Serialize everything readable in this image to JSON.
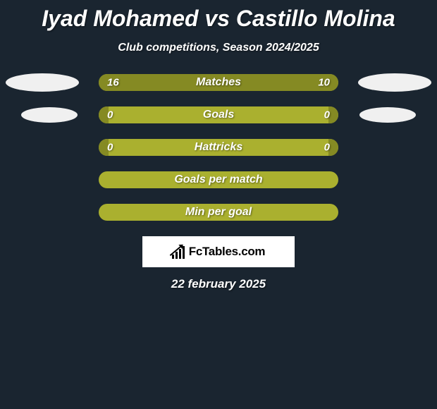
{
  "title": "Iyad Mohamed vs Castillo Molina",
  "subtitle": "Club competitions, Season 2024/2025",
  "date": "22 february 2025",
  "brand": "FcTables.com",
  "colors": {
    "background": "#1a2530",
    "bar_base": "#aab02f",
    "bar_dark": "#858a23",
    "text": "#ffffff",
    "ellipse": "#f0f0f0",
    "brand_box": "#ffffff",
    "brand_text": "#000000"
  },
  "rows": [
    {
      "label": "Matches",
      "left": "16",
      "right": "10",
      "fill_left_pct": 62,
      "fill_right_pct": 38,
      "ellipse": "big"
    },
    {
      "label": "Goals",
      "left": "0",
      "right": "0",
      "fill_left_pct": 4,
      "fill_right_pct": 4,
      "ellipse": "small"
    },
    {
      "label": "Hattricks",
      "left": "0",
      "right": "0",
      "fill_left_pct": 4,
      "fill_right_pct": 4,
      "ellipse": "none"
    },
    {
      "label": "Goals per match",
      "left": "",
      "right": "",
      "fill_left_pct": 0,
      "fill_right_pct": 0,
      "ellipse": "none"
    },
    {
      "label": "Min per goal",
      "left": "",
      "right": "",
      "fill_left_pct": 0,
      "fill_right_pct": 0,
      "ellipse": "none"
    }
  ]
}
